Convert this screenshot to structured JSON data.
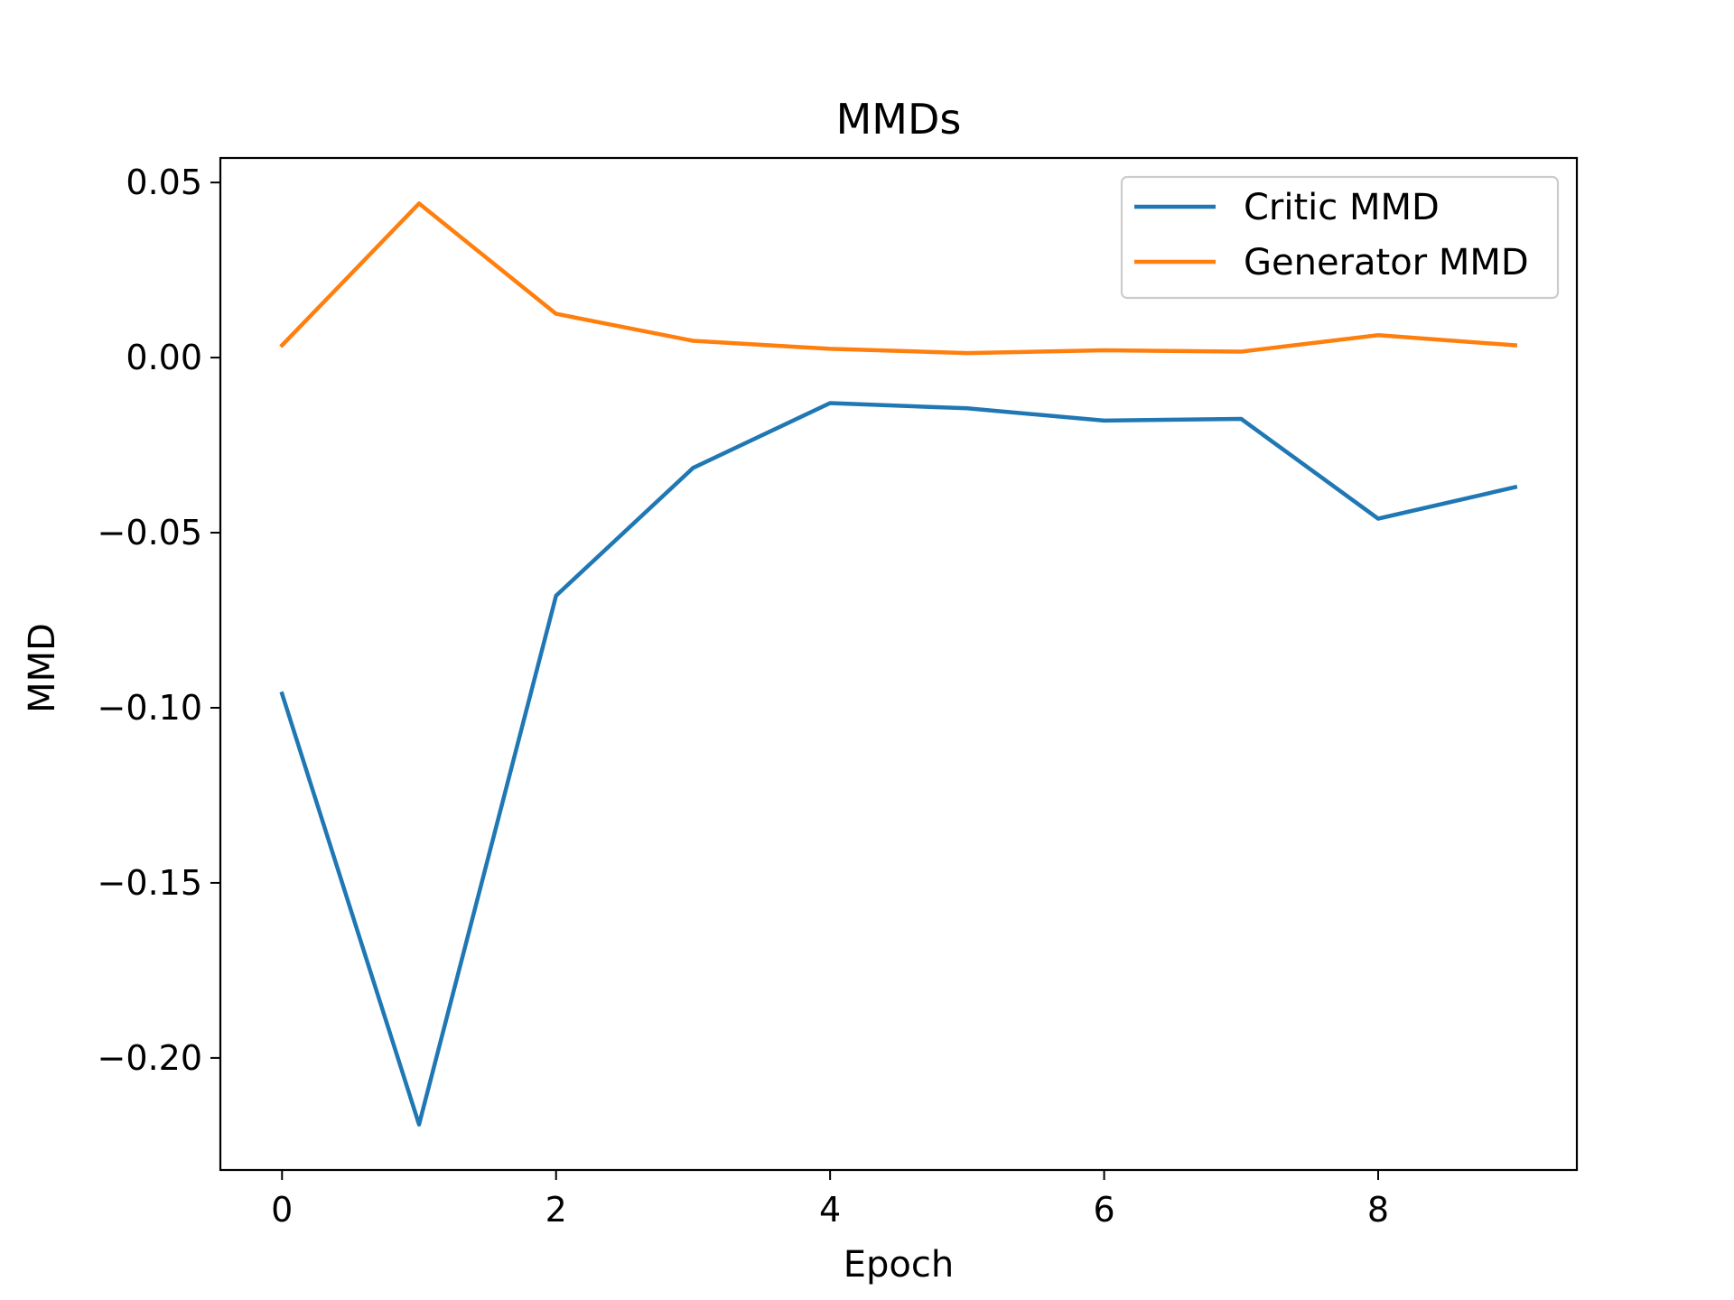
{
  "chart_data": {
    "type": "line",
    "title": "MMDs",
    "xlabel": "Epoch",
    "ylabel": "MMD",
    "x": [
      0,
      1,
      2,
      3,
      4,
      5,
      6,
      7,
      8,
      9
    ],
    "xlim": [
      -0.45,
      9.45
    ],
    "ylim": [
      -0.232,
      0.057
    ],
    "xticks": [
      0,
      2,
      4,
      6,
      8
    ],
    "xtick_labels": [
      "0",
      "2",
      "4",
      "6",
      "8"
    ],
    "yticks": [
      0.05,
      0.0,
      -0.05,
      -0.1,
      -0.15,
      -0.2
    ],
    "ytick_labels": [
      "0.05",
      "0.00",
      "−0.05",
      "−0.10",
      "−0.15",
      "−0.20"
    ],
    "grid": false,
    "legend_position": "top-right",
    "series": [
      {
        "name": "Critic MMD",
        "color": "#1f77b4",
        "values": [
          -0.096,
          -0.219,
          -0.068,
          -0.0315,
          -0.013,
          -0.0145,
          -0.018,
          -0.0175,
          -0.046,
          -0.037
        ]
      },
      {
        "name": "Generator MMD",
        "color": "#ff7f0e",
        "values": [
          0.0035,
          0.044,
          0.0125,
          0.0048,
          0.0025,
          0.0013,
          0.0021,
          0.0017,
          0.0064,
          0.0035
        ]
      }
    ]
  }
}
